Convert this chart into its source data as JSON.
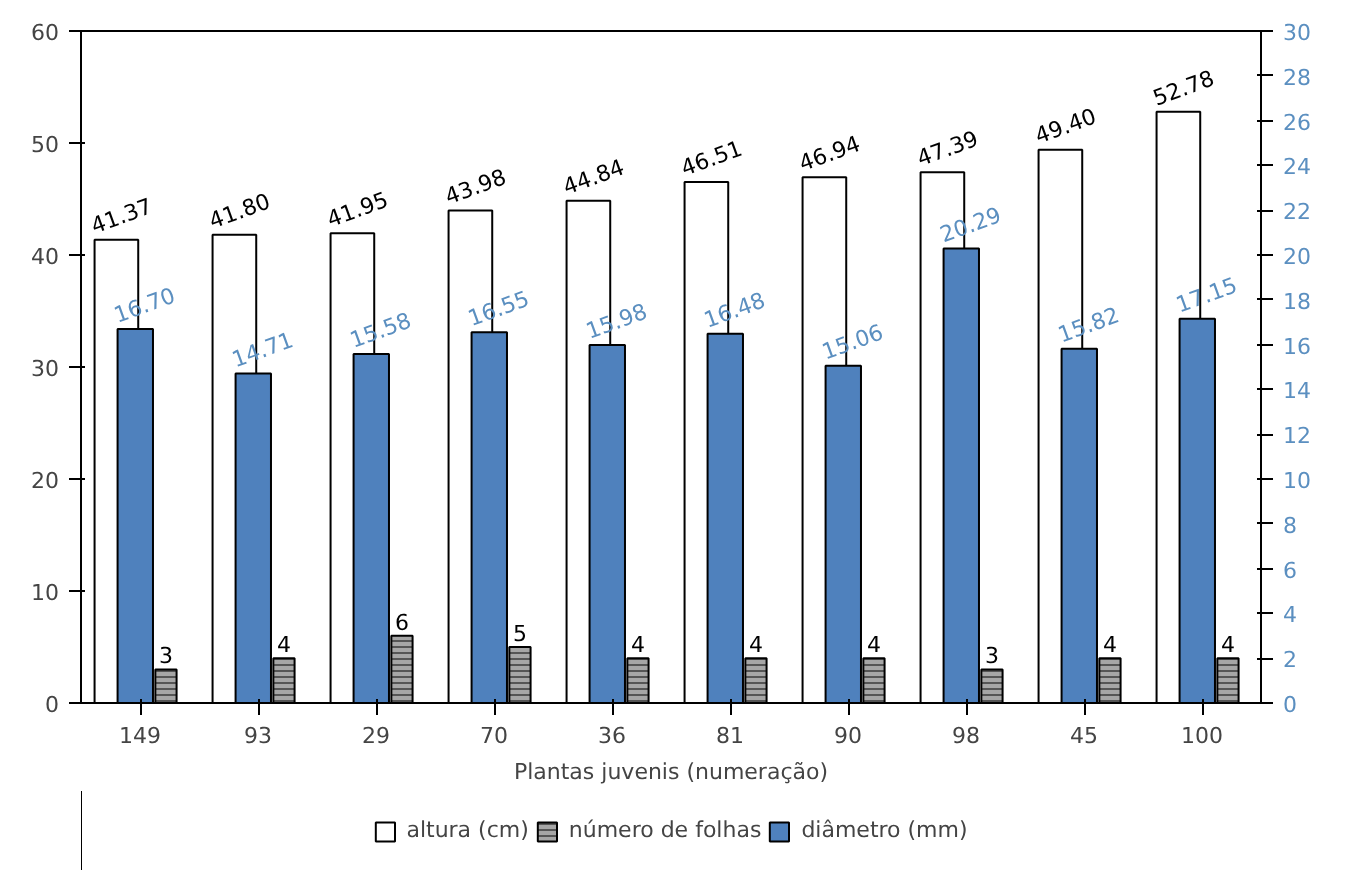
{
  "chart_data": {
    "type": "bar",
    "xlabel": "Plantas juvenis (numeração)",
    "categories": [
      "149",
      "93",
      "29",
      "70",
      "36",
      "81",
      "90",
      "98",
      "45",
      "100"
    ],
    "series": [
      {
        "name": "altura (cm)",
        "color": "#ffffff",
        "values": [
          41.37,
          41.8,
          41.95,
          43.98,
          44.84,
          46.51,
          46.94,
          47.39,
          49.4,
          52.78
        ],
        "value_labels": [
          "41.37",
          "41.80",
          "41.95",
          "43.98",
          "44.84",
          "46.51",
          "46.94",
          "47.39",
          "49.40",
          "52.78"
        ]
      },
      {
        "name": "diâmetro (mm)",
        "color": "#4f81bd",
        "axis": "y2",
        "values": [
          16.7,
          14.71,
          15.58,
          16.55,
          15.98,
          16.48,
          15.06,
          20.29,
          15.82,
          17.15
        ],
        "value_labels": [
          "16.70",
          "14.71",
          "15.58",
          "16.55",
          "15.98",
          "16.48",
          "15.06",
          "20.29",
          "15.82",
          "17.15"
        ]
      },
      {
        "name": "número de folhas",
        "color": "#a6a6a6",
        "values": [
          3,
          4,
          6,
          5,
          4,
          4,
          4,
          3,
          4,
          4
        ],
        "value_labels": [
          "3",
          "4",
          "6",
          "5",
          "4",
          "4",
          "4",
          "3",
          "4",
          "4"
        ]
      }
    ],
    "ylim": [
      0,
      60
    ],
    "yticks": [
      0,
      10,
      20,
      30,
      40,
      50,
      60
    ],
    "y2lim": [
      0,
      30
    ],
    "y2ticks": [
      0,
      2,
      4,
      6,
      8,
      10,
      12,
      14,
      16,
      18,
      20,
      22,
      24,
      26,
      28,
      30
    ],
    "grid": false,
    "legend": "bottom"
  }
}
